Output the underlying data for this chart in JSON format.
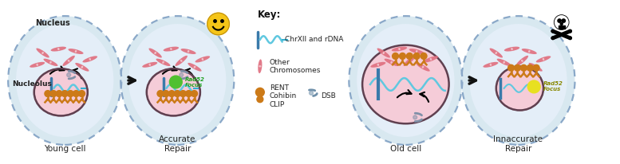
{
  "bg_color": "#ffffff",
  "cell_fill": "#d8e8f0",
  "cell_edge": "#8aA8C8",
  "cell_inner_fill": "#e4eef8",
  "nucleolus_color": "#f5ccd8",
  "chromosome_pink": "#e07080",
  "chromosome_blue": "#3a7aaa",
  "rent_color": "#cc7a18",
  "rad52_green": "#50c030",
  "rad52_yellow": "#e8e020",
  "arrow_color": "#111111",
  "key_title": "Key:",
  "key_chrxii": "ChrXII and rDNA",
  "key_other": "Other\nChromosomes",
  "key_rent": "RENT\nCohibin\nCLIP",
  "key_dsb": "DSB",
  "nucleus_label": "Nucleus",
  "nucleolus_label": "Nucleolus",
  "young_label": "Young cell",
  "accurate_label": "Accurate\nRepair",
  "old_label": "Old cell",
  "innaccurate_label": "Innaccurate\nRepair",
  "smiley_color": "#f5c518",
  "skull_color": "#111111",
  "rDNA_color": "#30b0d0",
  "rDNA_coil_color": "#60c8e0",
  "scissors_color": "#8090a8"
}
